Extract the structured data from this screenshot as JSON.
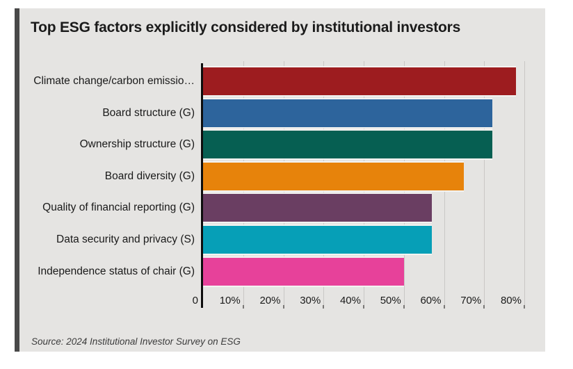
{
  "title": "Top ESG factors explicitly considered by institutional investors",
  "source": "Source: 2024 Institutional Investor Survey on ESG",
  "theme": {
    "page_background": "#ffffff",
    "card_background": "#e5e4e2",
    "accent_stripe": "#484848",
    "gridline_color": "#c9c7c5",
    "axis_color": "#0d0d0d",
    "text_color": "#1a1a1a"
  },
  "chart_data": {
    "type": "bar",
    "orientation": "horizontal",
    "title": "Top ESG factors explicitly considered by institutional investors",
    "categories": [
      "Climate change/carbon emissio…",
      "Board structure (G)",
      "Ownership structure (G)",
      "Board diversity (G)",
      "Quality of financial reporting (G)",
      "Data security and privacy (S)",
      "Independence status of chair (G)"
    ],
    "values": [
      78,
      72,
      72,
      65,
      57,
      57,
      50
    ],
    "unit": "%",
    "bar_colors": [
      "#9d1c1f",
      "#2d649c",
      "#065f52",
      "#e7830b",
      "#6a3e62",
      "#069fb7",
      "#e7419a"
    ],
    "x_ticks": [
      {
        "label": "0",
        "value": 0
      },
      {
        "label": "10%",
        "value": 10
      },
      {
        "label": "20%",
        "value": 20
      },
      {
        "label": "30%",
        "value": 30
      },
      {
        "label": "40%",
        "value": 40
      },
      {
        "label": "50%",
        "value": 50
      },
      {
        "label": "60%",
        "value": 60
      },
      {
        "label": "70%",
        "value": 70
      },
      {
        "label": "80%",
        "value": 80
      }
    ],
    "xlim": [
      0,
      85
    ],
    "grid": true,
    "legend": false,
    "source_note": "Source: 2024 Institutional Investor Survey on ESG"
  }
}
